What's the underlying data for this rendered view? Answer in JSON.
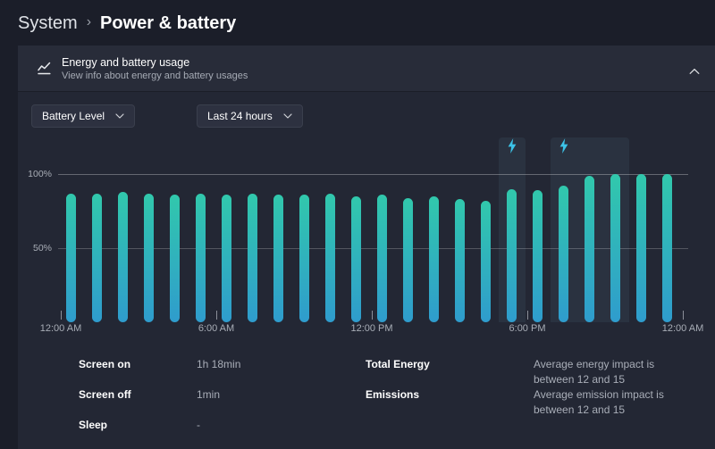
{
  "breadcrumb": {
    "parent": "System",
    "separator": "›",
    "current": "Power & battery"
  },
  "expander": {
    "title": "Energy and battery usage",
    "subtitle": "View info about energy and battery usages",
    "icon": "line-chart-icon",
    "state_icon": "chevron-up-icon"
  },
  "filters": {
    "metric_value": "Battery Level",
    "time_range_value": "Last 24 hours"
  },
  "chart_data": {
    "type": "bar",
    "title": "Battery Level over last 24 hours",
    "unit": "percent",
    "values": [
      87,
      87,
      88,
      87,
      86,
      87,
      86,
      87,
      86,
      86,
      87,
      85,
      86,
      84,
      85,
      83,
      82,
      90,
      89,
      92,
      99,
      100,
      100,
      100
    ],
    "ylim": [
      0,
      100
    ],
    "y_ticks": [
      {
        "value": 100,
        "label": "100%"
      },
      {
        "value": 50,
        "label": "50%"
      }
    ],
    "x_ticks": [
      {
        "hour": 0,
        "label": "12:00 AM"
      },
      {
        "hour": 6,
        "label": "6:00 AM"
      },
      {
        "hour": 12,
        "label": "12:00 PM"
      },
      {
        "hour": 18,
        "label": "6:00 PM"
      },
      {
        "hour": 24,
        "label": "12:00 AM"
      }
    ],
    "charging_sessions": [
      {
        "start_hour": 17,
        "end_hour": 18
      },
      {
        "start_hour": 19,
        "end_hour": 22
      }
    ],
    "colors": {
      "bar_top": "#31c8ac",
      "bar_bottom": "#2f9ccd",
      "bolt": "#3cc3e8",
      "band": "rgba(137,203,222,0.07)"
    },
    "legend": "lightning bolt marks charging periods"
  },
  "stats": {
    "left": [
      {
        "label": "Screen on",
        "value": "1h 18min"
      },
      {
        "label": "Screen off",
        "value": "1min"
      },
      {
        "label": "Sleep",
        "value": "-"
      }
    ],
    "right": [
      {
        "label": "Total Energy",
        "value": "Average energy impact is between 12 and 15"
      },
      {
        "label": "Emissions",
        "value": "Average emission impact is between 12 and 15"
      }
    ]
  }
}
